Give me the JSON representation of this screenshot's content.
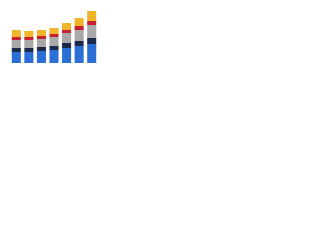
{
  "chart_data": {
    "type": "stacked-bar",
    "categories": [
      null,
      null,
      null,
      null,
      null,
      null,
      null
    ],
    "series": [
      {
        "color": "#2b6fd6",
        "values": [
          11,
          11,
          12,
          13,
          15,
          17,
          19
        ]
      },
      {
        "color": "#1c2b4b",
        "values": [
          4,
          4,
          4,
          4,
          5,
          5,
          6
        ]
      },
      {
        "color": "#a9a9a9",
        "values": [
          8,
          8,
          8,
          9,
          10,
          11,
          13
        ]
      },
      {
        "color": "#c8202e",
        "values": [
          3,
          3,
          3,
          3,
          3,
          4,
          4
        ]
      },
      {
        "color": "#f0b52a",
        "values": [
          7,
          6,
          6,
          6,
          7,
          8,
          10
        ]
      }
    ],
    "ylim": [
      0,
      60
    ]
  }
}
